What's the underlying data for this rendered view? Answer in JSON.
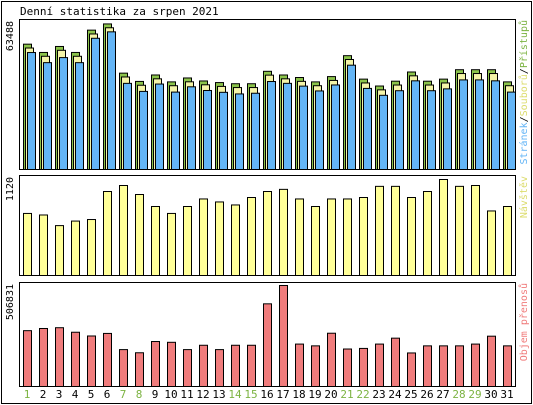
{
  "chart_data": {
    "title": "Denní statistika za srpen 2021",
    "days": [
      "1",
      "2",
      "3",
      "4",
      "5",
      "6",
      "7",
      "8",
      "9",
      "10",
      "11",
      "12",
      "13",
      "14",
      "15",
      "16",
      "17",
      "18",
      "19",
      "20",
      "21",
      "22",
      "23",
      "24",
      "25",
      "26",
      "27",
      "28",
      "29",
      "30",
      "31"
    ],
    "weekend_days": [
      "1",
      "7",
      "8",
      "14",
      "15",
      "21",
      "22",
      "28",
      "29"
    ],
    "colors": {
      "background": "#ffffff",
      "frame": "#000000",
      "weekday_label": "#000000",
      "weekend_label": "#7cb342",
      "hits": "#8bc34a",
      "files": "#f4f4a8",
      "pages": "#64b5f6",
      "visits": "#ffff99",
      "volume": "#f07c7c"
    },
    "panels": [
      {
        "type": "grouped-bar",
        "max_label": "63488",
        "ylim": [
          0,
          63488
        ],
        "legend": [
          {
            "text": "Stránek",
            "color": "#64b5f6"
          },
          {
            "text": "/",
            "color": "#000000"
          },
          {
            "text": "Souborů",
            "color": "#dcdc6e"
          },
          {
            "text": "/",
            "color": "#000000"
          },
          {
            "text": "Přístupů",
            "color": "#7cb342"
          }
        ],
        "series": [
          {
            "key": "hits",
            "values": [
              54500,
              50900,
              53500,
              50900,
              60600,
              63300,
              41900,
              38300,
              41100,
              38100,
              39800,
              38500,
              37800,
              37300,
              37300,
              42700,
              41100,
              40000,
              38100,
              40400,
              49500,
              39300,
              36300,
              38400,
              42400,
              38400,
              39300,
              43400,
              43400,
              43400,
              38100
            ]
          },
          {
            "key": "files",
            "values": [
              53700,
              50100,
              52700,
              50100,
              59800,
              62500,
              41100,
              37500,
              40300,
              37300,
              39000,
              37700,
              37000,
              36500,
              36500,
              41900,
              40300,
              39200,
              37300,
              39600,
              48700,
              38500,
              35500,
              37600,
              41600,
              37600,
              38500,
              42600,
              42600,
              42600,
              37300
            ]
          },
          {
            "key": "pages",
            "values": [
              52600,
              48200,
              50400,
              48200,
              58800,
              61600,
              39200,
              35700,
              38900,
              35400,
              37700,
              36100,
              35300,
              34600,
              34900,
              40000,
              39200,
              38000,
              35900,
              38500,
              47100,
              37000,
              34000,
              36000,
              40300,
              36000,
              36800,
              40700,
              40700,
              40300,
              35400
            ]
          }
        ]
      },
      {
        "type": "bar",
        "max_label": "1120",
        "ylim": [
          0,
          1120
        ],
        "legend": [
          {
            "text": "Návštěv",
            "color": "#dcdc6e"
          }
        ],
        "series": [
          {
            "key": "visits",
            "values": [
              724,
              706,
              582,
              635,
              653,
              980,
              1050,
              945,
              805,
              724,
              805,
              893,
              858,
              823,
              910,
              980,
              1005,
              893,
              805,
              893,
              893,
              910,
              1040,
              1040,
              910,
              980,
              1120,
              1040,
              1050,
              753,
              805
            ]
          }
        ]
      },
      {
        "type": "bar",
        "max_label": "506831",
        "ylim": [
          0,
          506831
        ],
        "legend": [
          {
            "text": "Objem přenosů",
            "color": "#f07c7c"
          }
        ],
        "series": [
          {
            "key": "volume",
            "values": [
              283000,
              294000,
              298000,
              275000,
              256000,
              269000,
              187000,
              171000,
              228000,
              224000,
              187000,
              209000,
              187000,
              209000,
              209000,
              419000,
              512000,
              215000,
              206000,
              270000,
              190000,
              193000,
              215000,
              245000,
              170000,
              206000,
              206000,
              206000,
              215000,
              255000,
              206000
            ]
          }
        ]
      }
    ]
  }
}
